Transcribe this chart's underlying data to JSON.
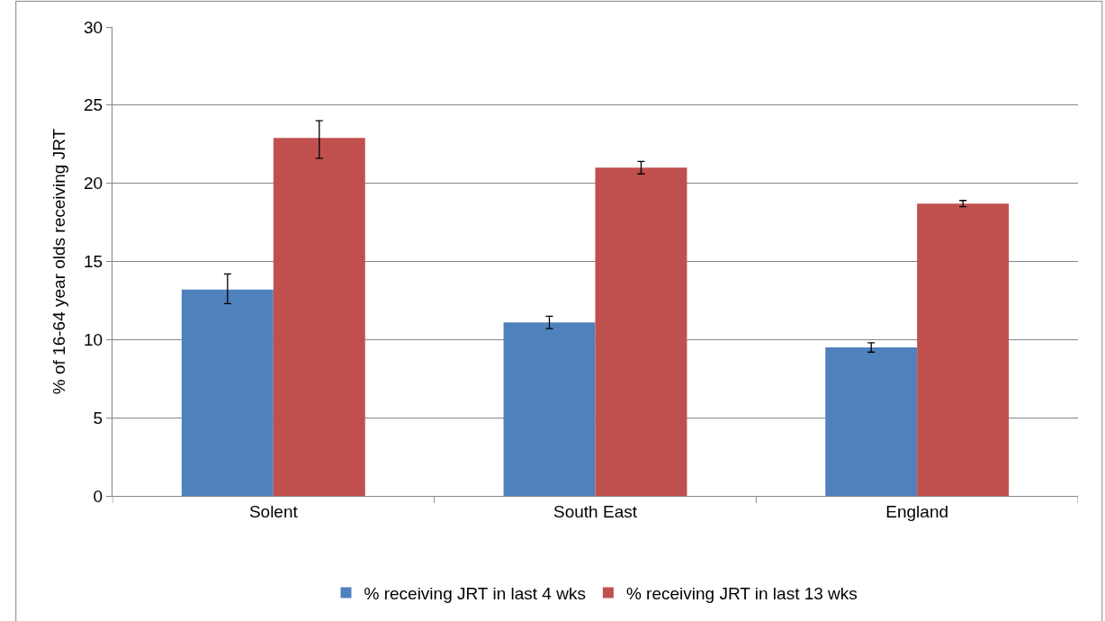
{
  "chart_data": {
    "type": "bar",
    "ylabel": "% of 16-64 year olds receiving JRT",
    "categories": [
      "Solent",
      "South East",
      "England"
    ],
    "series": [
      {
        "name": "% receiving JRT in last 4 wks",
        "color": "#4f81bd",
        "values": [
          13.2,
          11.1,
          9.5
        ],
        "errors": [
          [
            12.3,
            14.2
          ],
          [
            10.7,
            11.5
          ],
          [
            9.2,
            9.8
          ]
        ]
      },
      {
        "name": "% receiving JRT in last 13 wks",
        "color": "#c0504d",
        "values": [
          22.9,
          21.0,
          18.7
        ],
        "errors": [
          [
            21.6,
            24.0
          ],
          [
            20.6,
            21.4
          ],
          [
            18.5,
            18.9
          ]
        ]
      }
    ],
    "ylim": [
      0,
      30
    ],
    "yticks": [
      0,
      5,
      10,
      15,
      20,
      25,
      30
    ],
    "grid": "y",
    "legend": "bottom"
  }
}
